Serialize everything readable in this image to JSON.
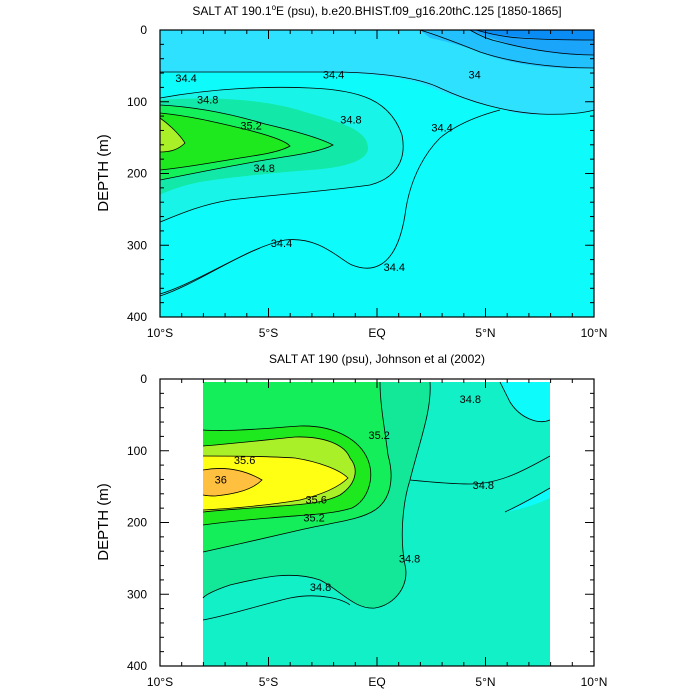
{
  "chart_data": [
    {
      "type": "contour",
      "title": "SALT AT 190.1°E (psu), b.e20.BHIST.f09_g16.20thC.125 [1850-1865]",
      "title_parts": {
        "before": "SALT AT 190.1",
        "sup": "o",
        "after": "E (psu), b.e20.BHIST.f09_g16.20thC.125 [1850-1865]"
      },
      "ylabel": "DEPTH (m)",
      "ylim": [
        400,
        0
      ],
      "yticks": [
        "0",
        "100",
        "200",
        "300",
        "400"
      ],
      "xlim": [
        -10,
        10
      ],
      "xticks": [
        "10°S",
        "5°S",
        "EQ",
        "5°N",
        "10°N"
      ],
      "colors": {
        "c33.6": "#0a8cf5",
        "c33.8": "#1aa5fa",
        "c34.0": "#22c0fc",
        "c34.2": "#2ee2ff",
        "c34.4": "#0dfbfb",
        "c34.6": "#18f5e8",
        "c34.8": "#12e8a8",
        "c35.0": "#14f05a",
        "c35.2": "#1ee81e",
        "c35.4": "#aaf028"
      },
      "contour_labels": [
        {
          "text": "34.4",
          "x": -8.8,
          "y": 67
        },
        {
          "text": "34.4",
          "x": -2.0,
          "y": 62
        },
        {
          "text": "34",
          "x": 4.5,
          "y": 62
        },
        {
          "text": "34.8",
          "x": -7.8,
          "y": 97
        },
        {
          "text": "35.2",
          "x": -5.8,
          "y": 133
        },
        {
          "text": "34.8",
          "x": -1.2,
          "y": 125
        },
        {
          "text": "34.4",
          "x": 3.0,
          "y": 136
        },
        {
          "text": "34.8",
          "x": -5.2,
          "y": 192
        },
        {
          "text": "34.4",
          "x": -4.4,
          "y": 297
        },
        {
          "text": "34.4",
          "x": 0.8,
          "y": 330
        }
      ]
    },
    {
      "type": "contour",
      "title": "SALT AT 190 (psu), Johnson et al (2002)",
      "ylabel": "DEPTH (m)",
      "ylim": [
        400,
        0
      ],
      "yticks": [
        "0",
        "100",
        "200",
        "300",
        "400"
      ],
      "xlim": [
        -10,
        10
      ],
      "xticks": [
        "10°S",
        "5°S",
        "EQ",
        "5°N",
        "10°N"
      ],
      "data_extent": {
        "x": [
          -8,
          8
        ],
        "y": [
          5,
          400
        ]
      },
      "colors": {
        "c34.6": "#0dfbfb",
        "c34.8": "#12f0c8",
        "c35.0": "#12e898",
        "c35.2": "#14ee5a",
        "c35.4": "#1ee81e",
        "c35.6": "#aaf028",
        "c35.8": "#ffff14",
        "c36.0": "#ffc040"
      },
      "contour_labels": [
        {
          "text": "34.8",
          "x": 4.3,
          "y": 28
        },
        {
          "text": "35.2",
          "x": 0.1,
          "y": 78
        },
        {
          "text": "35.6",
          "x": -6.1,
          "y": 113
        },
        {
          "text": "36",
          "x": -7.2,
          "y": 140
        },
        {
          "text": "35.6",
          "x": -2.8,
          "y": 168
        },
        {
          "text": "34.8",
          "x": 4.9,
          "y": 148
        },
        {
          "text": "35.2",
          "x": -2.9,
          "y": 193
        },
        {
          "text": "34.8",
          "x": 1.5,
          "y": 250
        },
        {
          "text": "34.8",
          "x": -2.6,
          "y": 290
        }
      ]
    }
  ]
}
